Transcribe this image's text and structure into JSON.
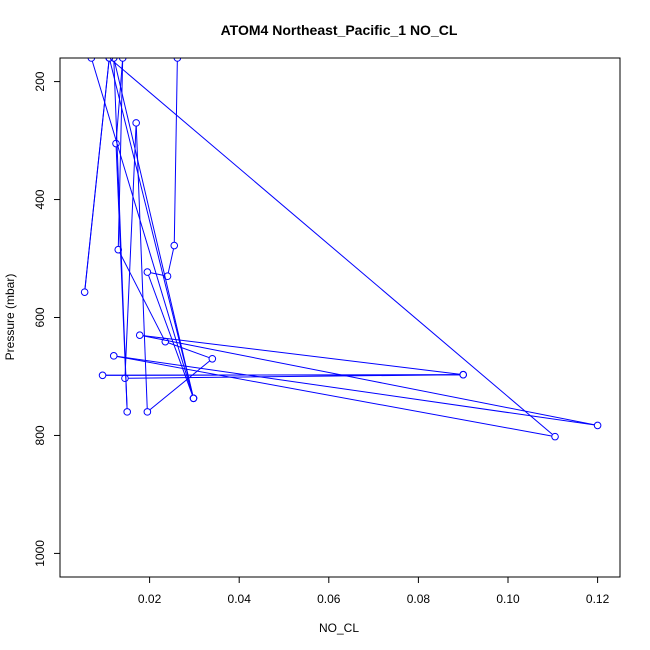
{
  "chart_data": {
    "type": "line",
    "title": "ATOM4 Northeast_Pacific_1 NO_CL",
    "xlabel": "NO_CL",
    "ylabel": "Pressure (mbar)",
    "xlim": [
      0.0,
      0.125
    ],
    "ylim": [
      160,
      1040
    ],
    "y_inverted": true,
    "x_ticks": [
      0.02,
      0.04,
      0.06,
      0.08,
      0.1,
      0.12
    ],
    "x_tick_labels": [
      "0.02",
      "0.04",
      "0.06",
      "0.08",
      "0.10",
      "0.12"
    ],
    "y_ticks": [
      200,
      400,
      600,
      800,
      1000
    ],
    "y_tick_labels": [
      "200",
      "400",
      "600",
      "800",
      "1000"
    ],
    "color": "#0000ff",
    "grid": false,
    "series": [
      {
        "x": [
          0.0262,
          0.0255,
          0.024,
          0.0195,
          0.0298,
          0.012,
          0.015,
          0.0125,
          0.014,
          0.013,
          0.0235,
          0.034,
          0.0195,
          0.017,
          0.0145,
          0.09,
          0.0095,
          0.09,
          0.0178,
          0.12,
          0.012,
          0.1105,
          0.011,
          0.0055,
          0.011,
          0.0298,
          0.007
        ],
        "y": [
          160,
          478,
          530,
          523,
          737,
          160,
          760,
          305,
          160,
          485,
          641,
          670,
          760,
          270,
          703,
          697,
          698,
          697,
          630,
          783,
          665,
          802,
          160,
          557,
          160,
          737,
          160
        ]
      }
    ]
  }
}
